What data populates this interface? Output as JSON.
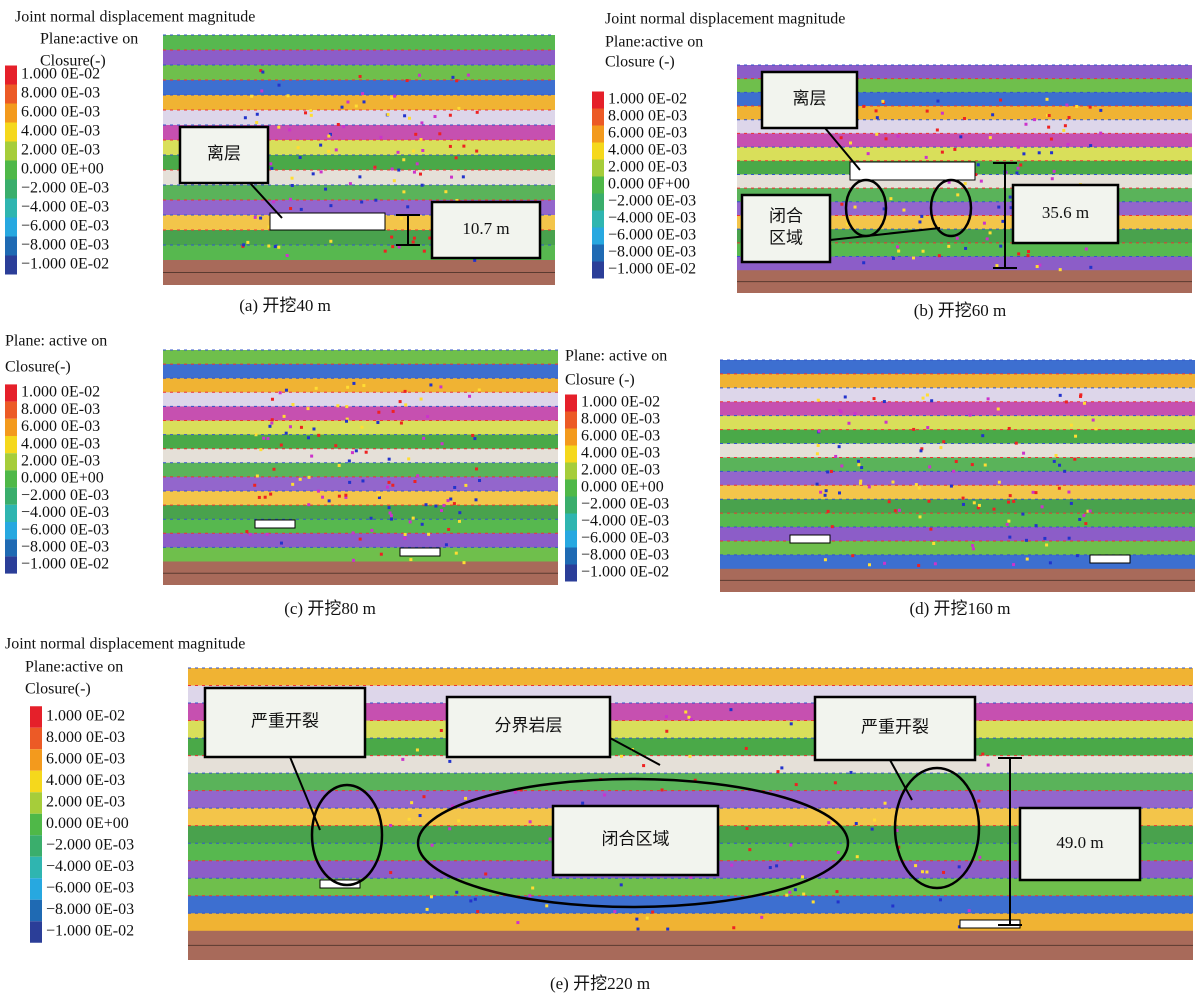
{
  "panels": [
    {
      "header": [
        "Joint normal displacement magnitude",
        "Plane:active on",
        "Closure(-)"
      ],
      "legend": [
        "1.000 0E-02",
        "8.000 0E-03",
        "6.000 0E-03",
        "4.000 0E-03",
        "2.000 0E-03",
        "0.000 0E+00",
        "−2.000 0E-03",
        "−4.000 0E-03",
        "−6.000 0E-03",
        "−8.000 0E-03",
        "−1.000 0E-02"
      ],
      "annotations": [
        "离层",
        "10.7 m"
      ],
      "caption": "(a) 开挖40 m"
    },
    {
      "header": [
        "Joint normal displacement magnitude",
        "Plane:active on",
        "Closure (-)"
      ],
      "legend": [
        "1.000 0E-02",
        "8.000 0E-03",
        "6.000 0E-03",
        "4.000 0E-03",
        "2.000 0E-03",
        "0.000 0F+00",
        "−2.000 0E-03",
        "−4.000 0E-03",
        "−6.000 0E-03",
        "−8.000 0E-03",
        "−1.000 0E-02"
      ],
      "annotations": [
        "离层",
        "闭合",
        "区域",
        "35.6 m"
      ],
      "caption": "(b) 开挖60 m"
    },
    {
      "header": [
        "Plane: active on",
        "Closure(-)"
      ],
      "legend": [
        "1.000 0E-02",
        "8.000 0E-03",
        "6.000 0E-03",
        "4.000 0E-03",
        "2.000 0E-03",
        "0.000 0E+00",
        "−2.000 0E-03",
        "−4.000 0E-03",
        "−6.000 0E-03",
        "−8.000 0E-03",
        "−1.000 0E-02"
      ],
      "annotations": [],
      "caption": "(c) 开挖80 m"
    },
    {
      "header": [
        "Plane: active on",
        "Closure (-)"
      ],
      "legend": [
        "1.000 0E-02",
        "8.000 0E-03",
        "6.000 0E-03",
        "4.000 0E-03",
        "2.000 0E-03",
        "0.000 0E+00",
        "−2.000 0E-03",
        "−4.000 0E-03",
        "−6.000 0E-03",
        "−8.000 0E-03",
        "−1.000 0E-02"
      ],
      "annotations": [],
      "caption": "(d) 开挖160 m"
    },
    {
      "header": [
        "Joint normal displacement magnitude",
        "Plane:active on",
        "Closure(-)"
      ],
      "legend": [
        "1.000 0E-02",
        "8.000 0E-03",
        "6.000 0E-03",
        "4.000 0E-03",
        "2.000 0E-03",
        "0.000 0E+00",
        "−2.000 0E-03",
        "−4.000 0E-03",
        "−6.000 0E-03",
        "−8.000 0E-03",
        "−1.000 0E-02"
      ],
      "annotations": [
        "严重开裂",
        "分界岩层",
        "严重开裂",
        "闭合区域",
        "49.0 m"
      ],
      "caption": "(e) 开挖220 m"
    }
  ]
}
